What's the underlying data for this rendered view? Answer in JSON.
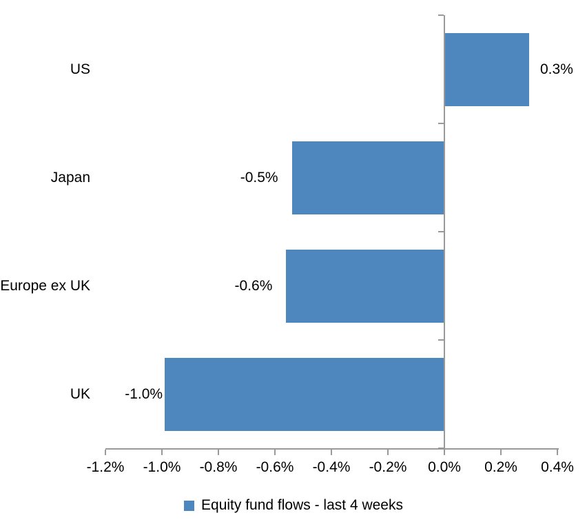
{
  "chart_data": {
    "type": "bar",
    "orientation": "horizontal",
    "title": "",
    "categories": [
      "US",
      "Japan",
      "Europe ex UK",
      "UK"
    ],
    "values": [
      0.3,
      -0.5,
      -0.6,
      -1.0
    ],
    "values_plotted": [
      0.3,
      -0.54,
      -0.56,
      -0.99
    ],
    "data_labels": [
      "0.3%",
      "-0.5%",
      "-0.6%",
      "-1.0%"
    ],
    "legend": "Equity fund flows - last 4 weeks",
    "legend_position": "bottom",
    "x_tick_values": [
      -1.2,
      -1.0,
      -0.8,
      -0.6,
      -0.4,
      -0.2,
      0.0,
      0.2,
      0.4
    ],
    "x_tick_labels": [
      "-1.2%",
      "-1.0%",
      "-0.8%",
      "-0.6%",
      "-0.4%",
      "-0.2%",
      "0.0%",
      "0.2%",
      "0.4%"
    ],
    "xlim": [
      -1.2,
      0.4
    ],
    "grid": false,
    "colors": {
      "bar": "#4E87BE",
      "axis": "#999999",
      "text": "#000000",
      "background": "#FFFFFF"
    }
  }
}
